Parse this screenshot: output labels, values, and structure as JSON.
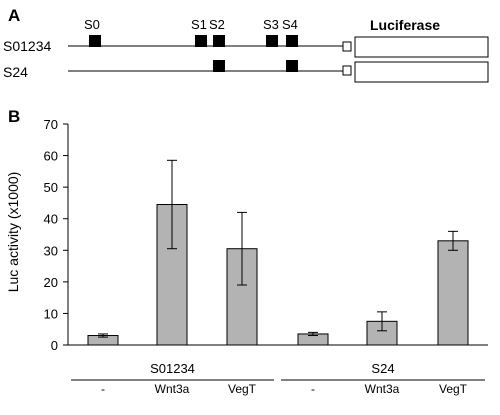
{
  "panel_a": {
    "label": "A",
    "constructs": [
      {
        "name": "S01234",
        "sites": [
          "S0",
          "S1",
          "S2",
          "S3",
          "S4"
        ]
      },
      {
        "name": "S24",
        "sites": [
          "S2",
          "S4"
        ]
      }
    ],
    "site_labels": [
      "S0",
      "S1",
      "S2",
      "S3",
      "S4"
    ],
    "reporter_label": "Luciferase"
  },
  "panel_b": {
    "label": "B"
  },
  "chart_data": {
    "type": "bar",
    "ylabel": "Luc activity (x1000)",
    "xlabel": "",
    "ylim": [
      0,
      70
    ],
    "yticks": [
      0,
      10,
      20,
      30,
      40,
      50,
      60,
      70
    ],
    "grid": false,
    "bar_color": "#b3b3b3",
    "groups": [
      {
        "name": "S01234",
        "categories": [
          "-",
          "Wnt3a",
          "VegT"
        ],
        "values": [
          3,
          44.5,
          30.5
        ],
        "errors": [
          0.5,
          14,
          11.5
        ]
      },
      {
        "name": "S24",
        "categories": [
          "-",
          "Wnt3a",
          "VegT"
        ],
        "values": [
          3.5,
          7.5,
          33
        ],
        "errors": [
          0.5,
          3,
          3
        ]
      }
    ]
  }
}
